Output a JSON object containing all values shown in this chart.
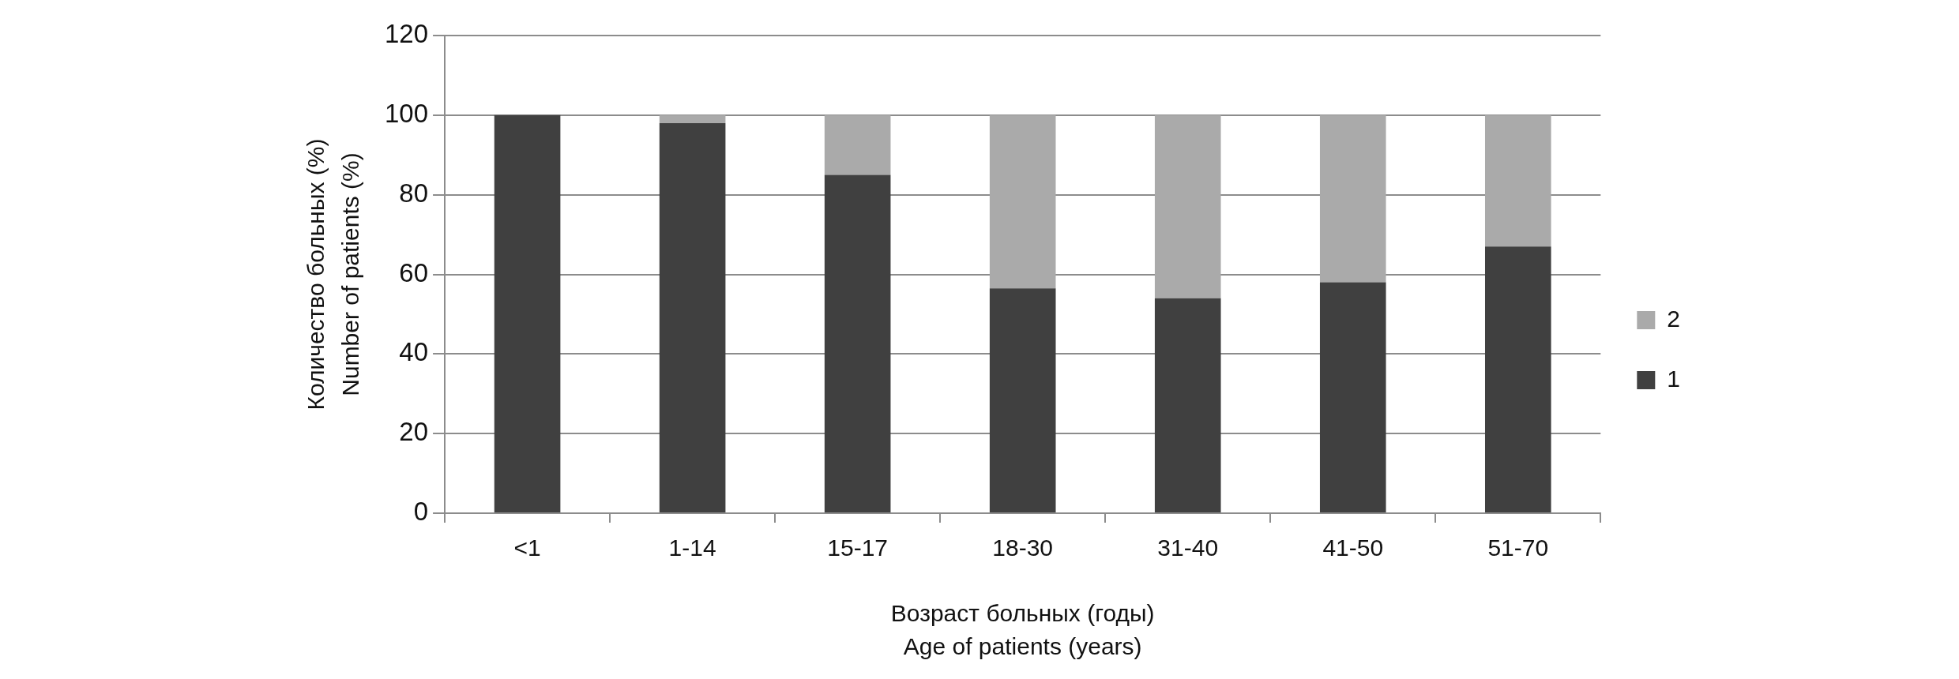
{
  "chart_data": {
    "type": "bar",
    "stacked": true,
    "xlabel": "Возраст больных (годы)\nAge of patients (years)",
    "ylabel": "Количество больных (%)\nNumber of patients (%)",
    "categories": [
      "<1",
      "1-14",
      "15-17",
      "18-30",
      "31-40",
      "41-50",
      "51-70"
    ],
    "series": [
      {
        "name": "1",
        "color": "#404040",
        "values": [
          100,
          98,
          85,
          56.5,
          54,
          58,
          67
        ]
      },
      {
        "name": "2",
        "color": "#aaaaaa",
        "values": [
          null,
          2,
          15,
          43.5,
          46,
          42,
          33
        ]
      }
    ],
    "ylim": [
      0,
      120
    ],
    "yticks": [
      0,
      20,
      40,
      60,
      80,
      100,
      120
    ],
    "grid": "y",
    "legend": "right"
  }
}
